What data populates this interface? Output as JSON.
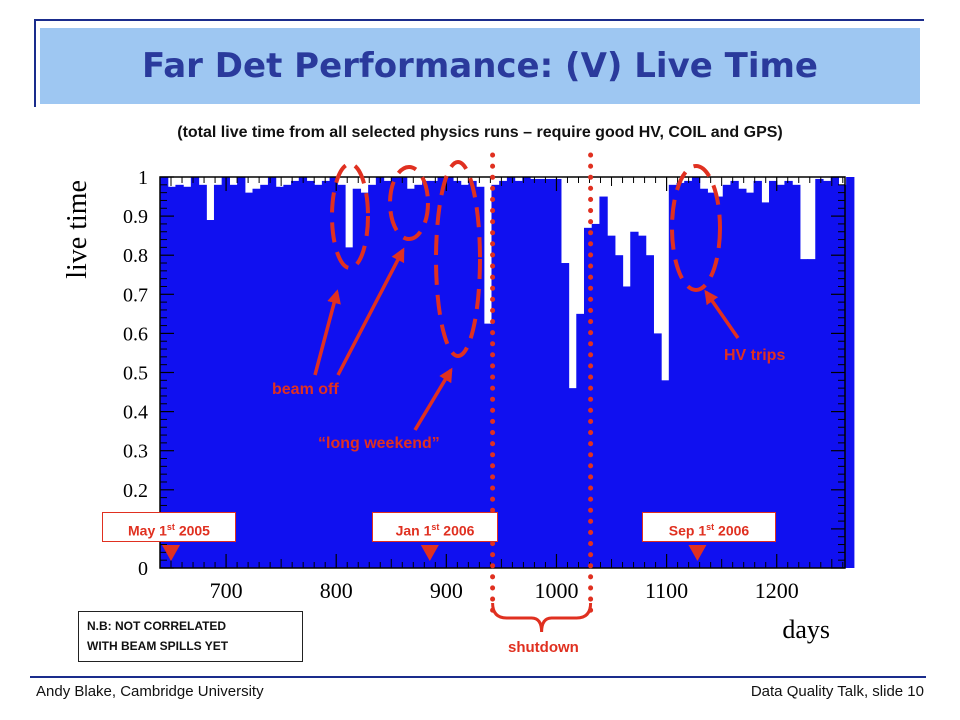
{
  "slide": {
    "title": "Far Det Performance: (V) Live Time",
    "subtitle": "(total live time from all selected physics runs – require good HV, COIL and GPS)",
    "footer_left": "Andy Blake, Cambridge University",
    "footer_right": "Data Quality Talk, slide 10",
    "note": [
      "N.B: NOT CORRELATED",
      "WITH BEAM SPILLS YET"
    ]
  },
  "annotations": {
    "beam_off": "beam off",
    "long_weekend": "“long weekend”",
    "hv_trips": "HV trips",
    "shutdown": "shutdown",
    "date_markers": [
      {
        "base": "May 1",
        "sup": "st",
        "tail": " 2005",
        "x": 650
      },
      {
        "base": "Jan 1",
        "sup": "st",
        "tail": " 2006",
        "x": 885
      },
      {
        "base": "Sep 1",
        "sup": "st",
        "tail": " 2006",
        "x": 1128
      }
    ],
    "shutdown_lines_x": [
      942,
      1031
    ],
    "colors": {
      "highlight": "#e03020",
      "bar": "#1010f0"
    }
  },
  "chart_data": {
    "type": "bar",
    "xlabel": "days",
    "ylabel": "live time",
    "xlim": [
      640,
      1262
    ],
    "ylim": [
      0,
      1
    ],
    "xticks": [
      700,
      800,
      900,
      1000,
      1100,
      1200
    ],
    "yticks": [
      0,
      0.1,
      0.2,
      0.3,
      0.4,
      0.5,
      0.6,
      0.7,
      0.8,
      0.9,
      1
    ],
    "ytick_labels": [
      "0",
      "0.1",
      "0.2",
      "0.3",
      "0.4",
      "0.5",
      "0.6",
      "0.7",
      "0.8",
      "0.9",
      "1"
    ],
    "bin_width": 7,
    "bin_start": 640,
    "values": [
      1,
      0.975,
      0.98,
      0.975,
      1,
      0.98,
      0.89,
      0.98,
      1,
      0.98,
      1,
      0.96,
      0.97,
      0.98,
      1,
      0.975,
      0.98,
      0.99,
      1,
      0.99,
      0.98,
      0.99,
      1,
      0.98,
      0.82,
      0.97,
      0.96,
      0.98,
      1,
      0.99,
      1,
      1,
      0.97,
      0.98,
      0.99,
      0.99,
      1,
      1,
      0.99,
      0.98,
      0.99,
      0.975,
      0.625,
      0.98,
      0.99,
      1,
      0.99,
      1,
      0.995,
      0.995,
      0.995,
      0.995,
      0.78,
      0.46,
      0.65,
      0.87,
      0.88,
      0.95,
      0.85,
      0.8,
      0.72,
      0.86,
      0.85,
      0.8,
      0.6,
      0.48,
      0.98,
      0.985,
      0.99,
      1,
      0.97,
      0.96,
      0.95,
      0.98,
      0.99,
      0.97,
      0.96,
      0.99,
      0.935,
      0.99,
      0.98,
      0.99,
      0.98,
      0.79,
      0.79,
      0.995,
      0.99,
      1,
      0.98,
      1
    ]
  }
}
